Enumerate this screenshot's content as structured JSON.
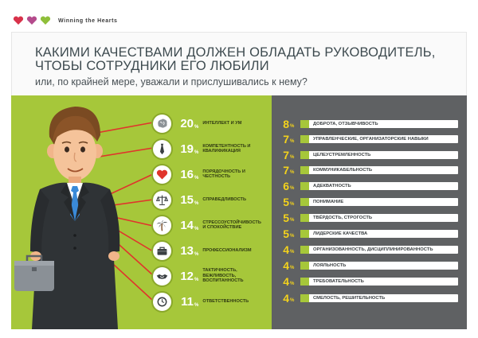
{
  "brand": {
    "name": "Winning the Hearts",
    "heart_colors": [
      "#d8324a",
      "#b44b8c",
      "#8fbf3a"
    ]
  },
  "title_line1": "Какими качествами должен обладать руководитель,",
  "title_line2": "чтобы сотрудники его любили",
  "subtitle": "или, по крайней мере, уважали и прислушивались к нему?",
  "colors": {
    "left_panel": "#a6c73a",
    "right_panel": "#5f6163",
    "lines": "#e0342c",
    "right_numbers": "#f3d21c"
  },
  "left_stats": [
    {
      "value": "20",
      "unit": "%",
      "label": "Интеллект и ум",
      "icon": "brain-icon"
    },
    {
      "value": "19",
      "unit": "%",
      "label": "Компетентность и квалификация",
      "icon": "tie-icon"
    },
    {
      "value": "16",
      "unit": "%",
      "label": "Порядочность и честность",
      "icon": "heart-icon"
    },
    {
      "value": "15",
      "unit": "%",
      "label": "Справедливость",
      "icon": "scales-icon"
    },
    {
      "value": "14",
      "unit": "%",
      "label": "Стрессоустойчивость и спокойствие",
      "icon": "palm-icon"
    },
    {
      "value": "13",
      "unit": "%",
      "label": "Профессионализм",
      "icon": "briefcase-icon"
    },
    {
      "value": "12",
      "unit": "%",
      "label": "Тактичность, вежливость, воспитанность",
      "icon": "handshake-icon"
    },
    {
      "value": "11",
      "unit": "%",
      "label": "Ответственность",
      "icon": "clock-icon"
    }
  ],
  "right_stats": [
    {
      "value": "8",
      "unit": "%",
      "label": "Доброта, отзывчивость"
    },
    {
      "value": "7",
      "unit": "%",
      "label": "Управленческие, организаторские навыки"
    },
    {
      "value": "7",
      "unit": "%",
      "label": "Целеустремленность"
    },
    {
      "value": "7",
      "unit": "%",
      "label": "Коммуникабельность"
    },
    {
      "value": "6",
      "unit": "%",
      "label": "Адекватность"
    },
    {
      "value": "5",
      "unit": "%",
      "label": "Понимание"
    },
    {
      "value": "5",
      "unit": "%",
      "label": "Твёрдость, строгость"
    },
    {
      "value": "5",
      "unit": "%",
      "label": "Лидерские качества"
    },
    {
      "value": "4",
      "unit": "%",
      "label": "Организованность, дисциплинированность"
    },
    {
      "value": "4",
      "unit": "%",
      "label": "Лояльность"
    },
    {
      "value": "4",
      "unit": "%",
      "label": "Требовательность"
    },
    {
      "value": "4",
      "unit": "%",
      "label": "Смелость, решительность"
    }
  ]
}
